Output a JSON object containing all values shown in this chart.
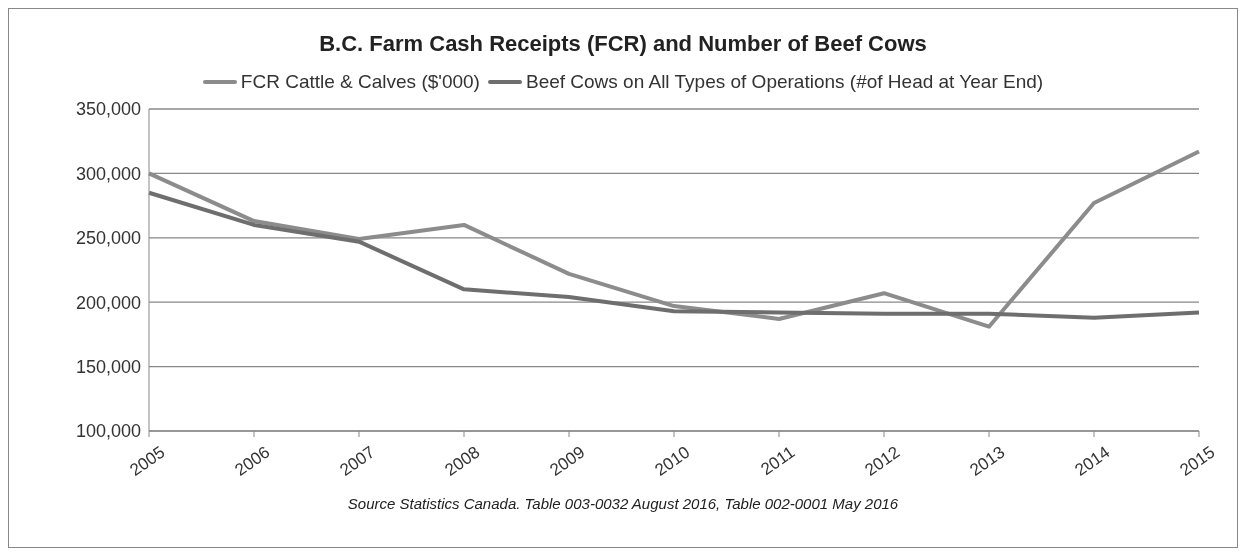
{
  "chart_data": {
    "type": "line",
    "title": "B.C. Farm Cash Receipts (FCR) and Number of Beef Cows",
    "categories": [
      "2005",
      "2006",
      "2007",
      "2008",
      "2009",
      "2010",
      "2011",
      "2012",
      "2013",
      "2014",
      "2015"
    ],
    "series": [
      {
        "name": "FCR Cattle & Calves ($'000)",
        "color": "#8c8c8c",
        "values": [
          300000,
          263000,
          249000,
          260000,
          222000,
          197000,
          187000,
          207000,
          181000,
          277000,
          317000
        ]
      },
      {
        "name": "Beef Cows on All Types of Operations (#of Head at Year End)",
        "color": "#6e6e6e",
        "values": [
          285000,
          260000,
          247000,
          210000,
          204000,
          193000,
          192000,
          191000,
          191000,
          188000,
          192000
        ]
      }
    ],
    "ylim": [
      100000,
      350000
    ],
    "yticks": [
      {
        "value": 100000,
        "label": "100,000"
      },
      {
        "value": 150000,
        "label": "150,000"
      },
      {
        "value": 200000,
        "label": "200,000"
      },
      {
        "value": 250000,
        "label": "250,000"
      },
      {
        "value": 300000,
        "label": "300,000"
      },
      {
        "value": 350000,
        "label": "350,000"
      }
    ],
    "grid": "y",
    "legend": "top",
    "marker": "none",
    "line_style": "solid",
    "annotations": [
      "Source Statistics Canada. Table 003-0032 August 2016, Table 002-0001 May 2016"
    ]
  }
}
